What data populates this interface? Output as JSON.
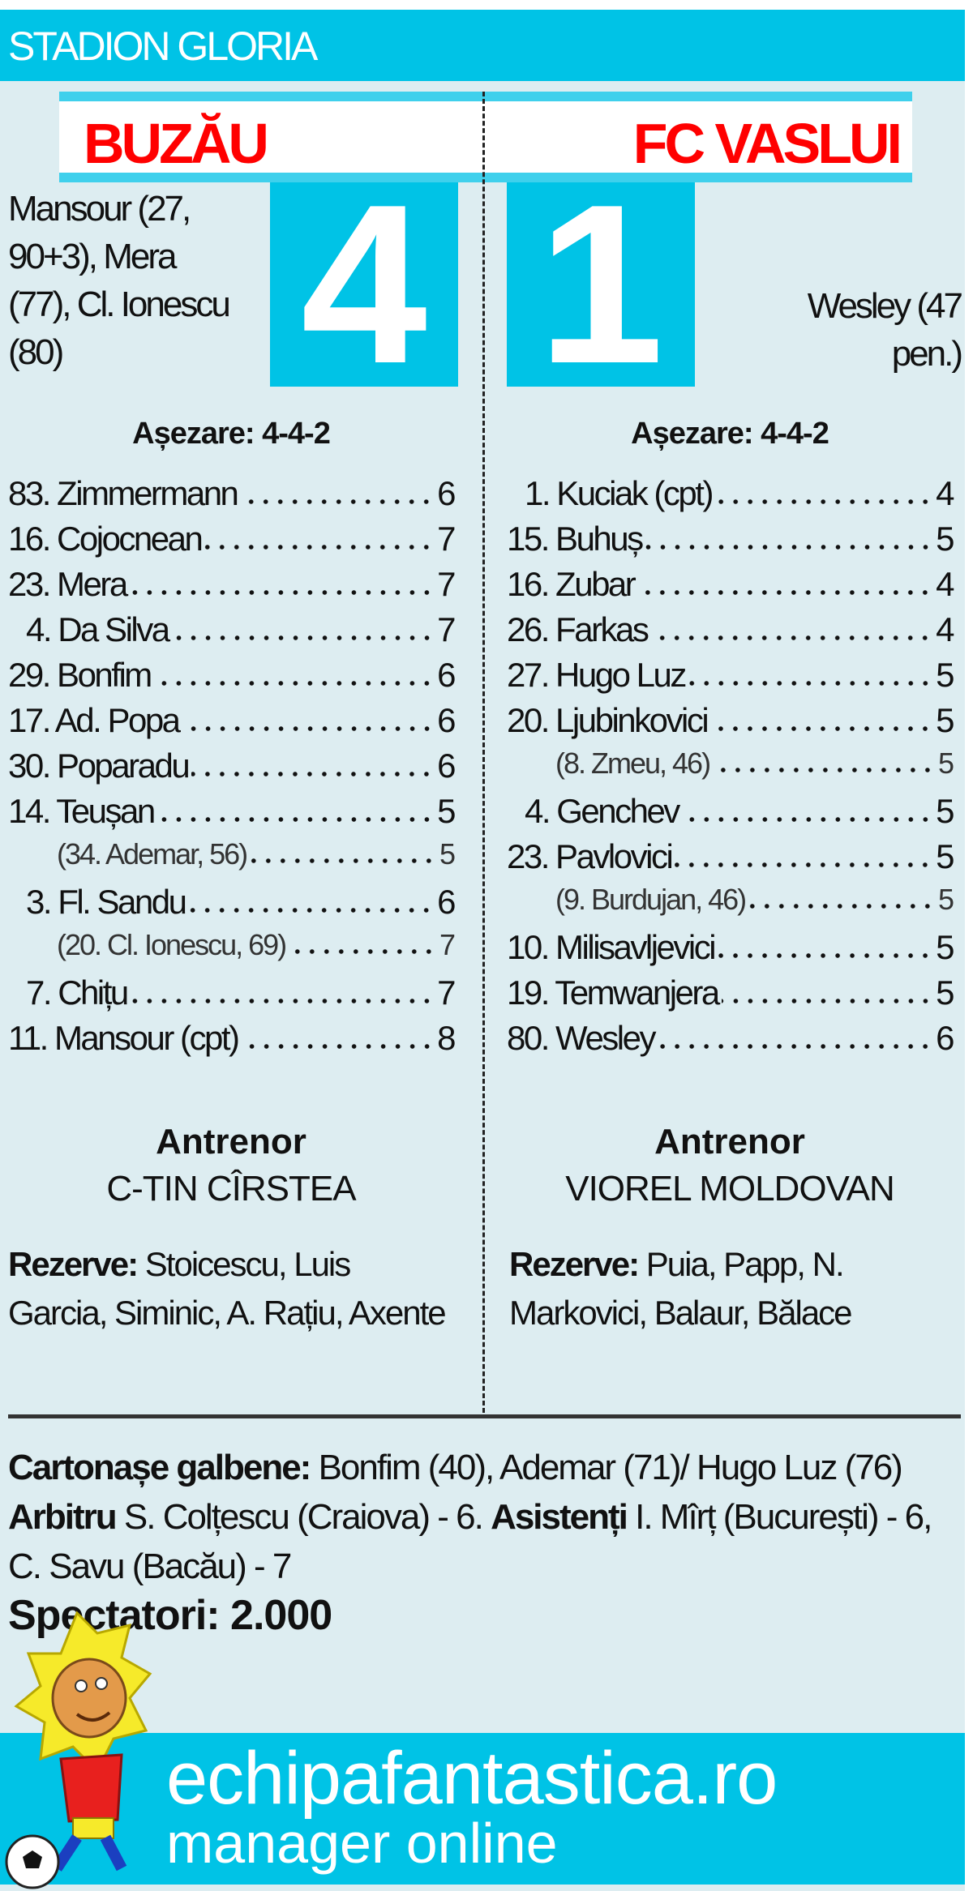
{
  "header": {
    "stadium": "STADION GLORIA"
  },
  "match": {
    "home": {
      "team": "BUZĂU",
      "score": "4",
      "scorers": [
        "Mansour (27,",
        "90+3), Mera",
        "(77), Cl. Ionescu",
        "(80)"
      ]
    },
    "away": {
      "team": "FC VASLUI",
      "score": "1",
      "scorers": [
        "Wesley (47",
        "pen.)"
      ]
    }
  },
  "home": {
    "formation": "Așezare: 4-4-2",
    "players": [
      {
        "name": "83. Zimmermann",
        "grade": "6",
        "sub": false
      },
      {
        "name": "16. Cojocnean",
        "grade": "7",
        "sub": false
      },
      {
        "name": "23. Mera",
        "grade": "7",
        "sub": false
      },
      {
        "name": "4. Da Silva",
        "grade": "7",
        "sub": false
      },
      {
        "name": "29. Bonfim",
        "grade": "6",
        "sub": false
      },
      {
        "name": "17. Ad. Popa",
        "grade": "6",
        "sub": false
      },
      {
        "name": "30. Poparadu",
        "grade": "6",
        "sub": false
      },
      {
        "name": "14. Teușan",
        "grade": "5",
        "sub": false
      },
      {
        "name": "(34. Ademar, 56)",
        "grade": "5",
        "sub": true
      },
      {
        "name": "3. Fl. Sandu",
        "grade": "6",
        "sub": false
      },
      {
        "name": "(20. Cl. Ionescu, 69)",
        "grade": "7",
        "sub": true
      },
      {
        "name": "7. Chițu",
        "grade": "7",
        "sub": false
      },
      {
        "name": "11. Mansour (cpt)",
        "grade": "8",
        "sub": false
      }
    ],
    "coach_label": "Antrenor",
    "coach": "C-TIN CÎRSTEA",
    "reserves_label": "Rezerve:",
    "reserves": "Stoicescu, Luis Garcia, Siminic, A. Rațiu, Axente"
  },
  "away": {
    "formation": "Așezare: 4-4-2",
    "players": [
      {
        "name": "1. Kuciak (cpt)",
        "grade": "4",
        "sub": false
      },
      {
        "name": "15. Buhuș",
        "grade": "5",
        "sub": false
      },
      {
        "name": "16. Zubar",
        "grade": "4",
        "sub": false
      },
      {
        "name": "26. Farkas",
        "grade": "4",
        "sub": false
      },
      {
        "name": "27. Hugo Luz",
        "grade": "5",
        "sub": false
      },
      {
        "name": "20. Ljubinkovici",
        "grade": "5",
        "sub": false
      },
      {
        "name": "(8. Zmeu, 46)",
        "grade": "5",
        "sub": true
      },
      {
        "name": "4. Genchev",
        "grade": "5",
        "sub": false
      },
      {
        "name": "23. Pavlovici",
        "grade": "5",
        "sub": false
      },
      {
        "name": "(9. Burdujan, 46)",
        "grade": "5",
        "sub": true
      },
      {
        "name": "10. Milisavljevici",
        "grade": "5",
        "sub": false
      },
      {
        "name": "19. Temwanjera",
        "grade": "5",
        "sub": false
      },
      {
        "name": "80. Wesley",
        "grade": "6",
        "sub": false
      }
    ],
    "coach_label": "Antrenor",
    "coach": "VIOREL MOLDOVAN",
    "reserves_label": "Rezerve:",
    "reserves": "Puia, Papp, N. Markovici, Balaur, Bălace"
  },
  "info": {
    "cards_label": "Cartonașe galbene:",
    "cards": "Bonfim (40), Ademar (71)/ Hugo Luz (76)",
    "referee_label": "Arbitru",
    "referee": "S. Colțescu (Craiova) - 6.",
    "assistants_label": "Asistenți",
    "assistants": "I. Mîrț (București) - 6, C. Savu (Bacău) - 7",
    "spectators": "Spectatori: 2.000"
  },
  "footer": {
    "site": "echipafantastica.ro",
    "tagline": "manager online",
    "logo_icon": "lion-mascot-with-ball"
  },
  "colors": {
    "accent": "#00c3e6",
    "team": "#ff0000",
    "background": "#ddedf1"
  }
}
